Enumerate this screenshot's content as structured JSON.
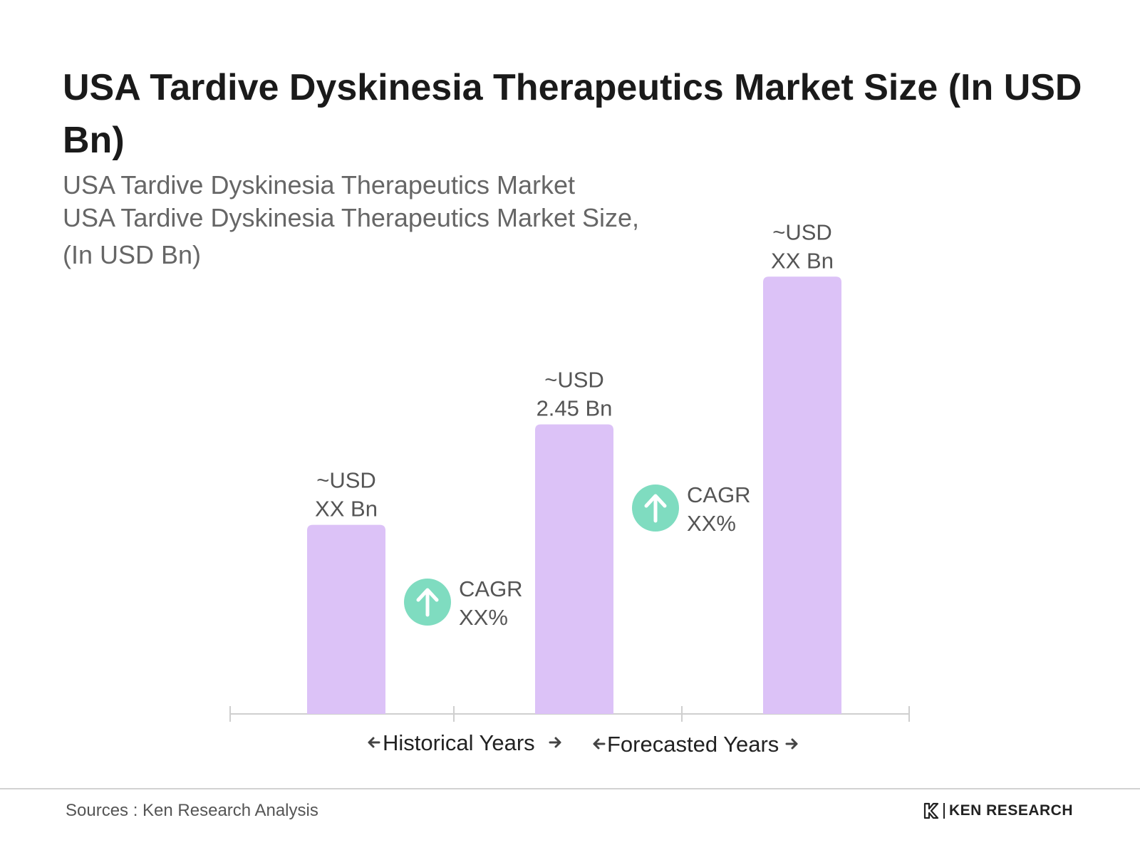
{
  "title": "USA Tardive Dyskinesia Therapeutics Market Size (In USD Bn)",
  "subtitle_lines": [
    "USA Tardive Dyskinesia Therapeutics Market",
    "USA Tardive Dyskinesia Therapeutics Market Size,",
    "(In USD Bn)"
  ],
  "chart_data": {
    "type": "bar",
    "categories": [
      "",
      "",
      ""
    ],
    "values": [
      1.6,
      2.45,
      3.7
    ],
    "bar_labels": [
      [
        "~USD",
        "XX Bn"
      ],
      [
        "~USD",
        "2.45 Bn"
      ],
      [
        "~USD",
        "XX Bn"
      ]
    ],
    "cagr_badges": [
      {
        "label": "CAGR",
        "value": "XX%"
      },
      {
        "label": "CAGR",
        "value": "XX%"
      }
    ],
    "period_labels": [
      "Historical Years",
      "Forecasted Years"
    ],
    "ylim": [
      0,
      3.75
    ],
    "bar_color": "#dcc2f7",
    "badge_color": "#7fdcc0",
    "grid": false
  },
  "footer": {
    "source": "Sources : Ken Research Analysis",
    "logo_text": "KEN RESEARCH"
  },
  "icons": {
    "cagr": "arrow-up-circle-icon",
    "left": "arrow-left-icon",
    "right": "arrow-right-icon",
    "logo": "ken-research-logo-icon"
  }
}
